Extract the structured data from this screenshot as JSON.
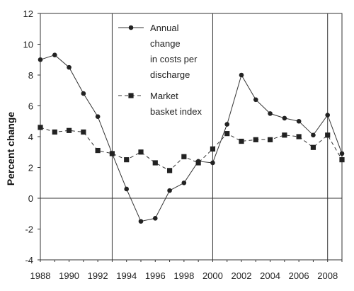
{
  "chart_data": {
    "type": "line",
    "title": "",
    "xlabel": "",
    "ylabel": "Percent change",
    "x": [
      1988,
      1989,
      1990,
      1991,
      1992,
      1993,
      1994,
      1995,
      1996,
      1997,
      1998,
      1999,
      2000,
      2001,
      2002,
      2003,
      2004,
      2005,
      2006,
      2007,
      2008,
      2009
    ],
    "xlim": [
      1988,
      2009
    ],
    "ylim": [
      -4,
      12
    ],
    "x_ticks": [
      1988,
      1990,
      1992,
      1994,
      1996,
      1998,
      2000,
      2002,
      2004,
      2006,
      2008
    ],
    "y_ticks": [
      -4,
      -2,
      0,
      2,
      4,
      6,
      8,
      10,
      12
    ],
    "vertical_reference_lines": [
      1993,
      2000,
      2008
    ],
    "horizontal_reference_line": 0,
    "grid": false,
    "legend_position": "top-center",
    "series": [
      {
        "name": "Annual change in costs per discharge",
        "legend_lines": [
          "Annual",
          "change",
          "in costs per",
          "discharge"
        ],
        "style": "solid",
        "marker": "circle",
        "values": [
          9.0,
          9.3,
          8.5,
          6.8,
          5.3,
          2.9,
          0.6,
          -1.5,
          -1.3,
          0.5,
          1.0,
          2.4,
          2.3,
          4.8,
          8.0,
          6.4,
          5.5,
          5.2,
          5.0,
          4.1,
          5.4,
          2.9
        ]
      },
      {
        "name": "Market basket index",
        "legend_lines": [
          "Market",
          "basket index"
        ],
        "style": "dashed",
        "marker": "square",
        "values": [
          4.6,
          4.3,
          4.4,
          4.3,
          3.1,
          2.9,
          2.5,
          3.0,
          2.3,
          1.8,
          2.7,
          2.3,
          3.2,
          4.2,
          3.7,
          3.8,
          3.8,
          4.1,
          4.0,
          3.3,
          4.1,
          2.5
        ]
      }
    ]
  }
}
